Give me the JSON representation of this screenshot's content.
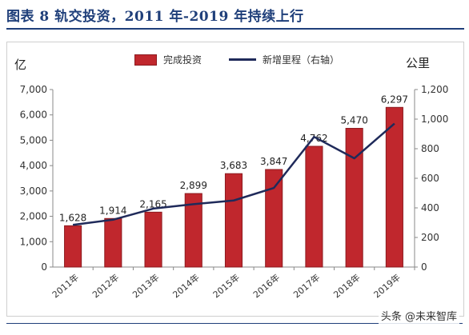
{
  "header": {
    "title": "图表 8   轨交投资，2011 年-2019 年持续上行"
  },
  "units": {
    "left": "亿",
    "right": "公里"
  },
  "legend": {
    "bar_label": "完成投资",
    "line_label": "新增里程（右轴）"
  },
  "watermark": "头条 @未来智库",
  "colors": {
    "bar": "#c0272d",
    "bar_edge": "#8c1a1f",
    "line": "#1f2a5a"
  },
  "chart_data": {
    "type": "bar",
    "categories": [
      "2011年",
      "2012年",
      "2013年",
      "2014年",
      "2015年",
      "2016年",
      "2017年",
      "2018年",
      "2019年"
    ],
    "series": [
      {
        "name": "完成投资",
        "type": "bar",
        "axis": "left",
        "values": [
          1628,
          1914,
          2165,
          2899,
          3683,
          3847,
          4762,
          5470,
          6297
        ],
        "labels": [
          "1,628",
          "1,914",
          "2,165",
          "2,899",
          "3,683",
          "3,847",
          "4,762",
          "5,470",
          "6,297"
        ]
      },
      {
        "name": "新增里程（右轴）",
        "type": "line",
        "axis": "right",
        "values": [
          285,
          320,
          395,
          425,
          450,
          535,
          880,
          735,
          970
        ]
      }
    ],
    "ylim": [
      0,
      7000
    ],
    "yticks": [
      0,
      1000,
      2000,
      3000,
      4000,
      5000,
      6000,
      7000
    ],
    "yticklabels": [
      "0",
      "1,000",
      "2,000",
      "3,000",
      "4,000",
      "5,000",
      "6,000",
      "7,000"
    ],
    "y2lim": [
      0,
      1200
    ],
    "y2ticks": [
      0,
      200,
      400,
      600,
      800,
      1000,
      1200
    ],
    "y2ticklabels": [
      "0",
      "200",
      "400",
      "600",
      "800",
      "1,000",
      "1,200"
    ],
    "legend_position": "top-center",
    "grid": false
  }
}
